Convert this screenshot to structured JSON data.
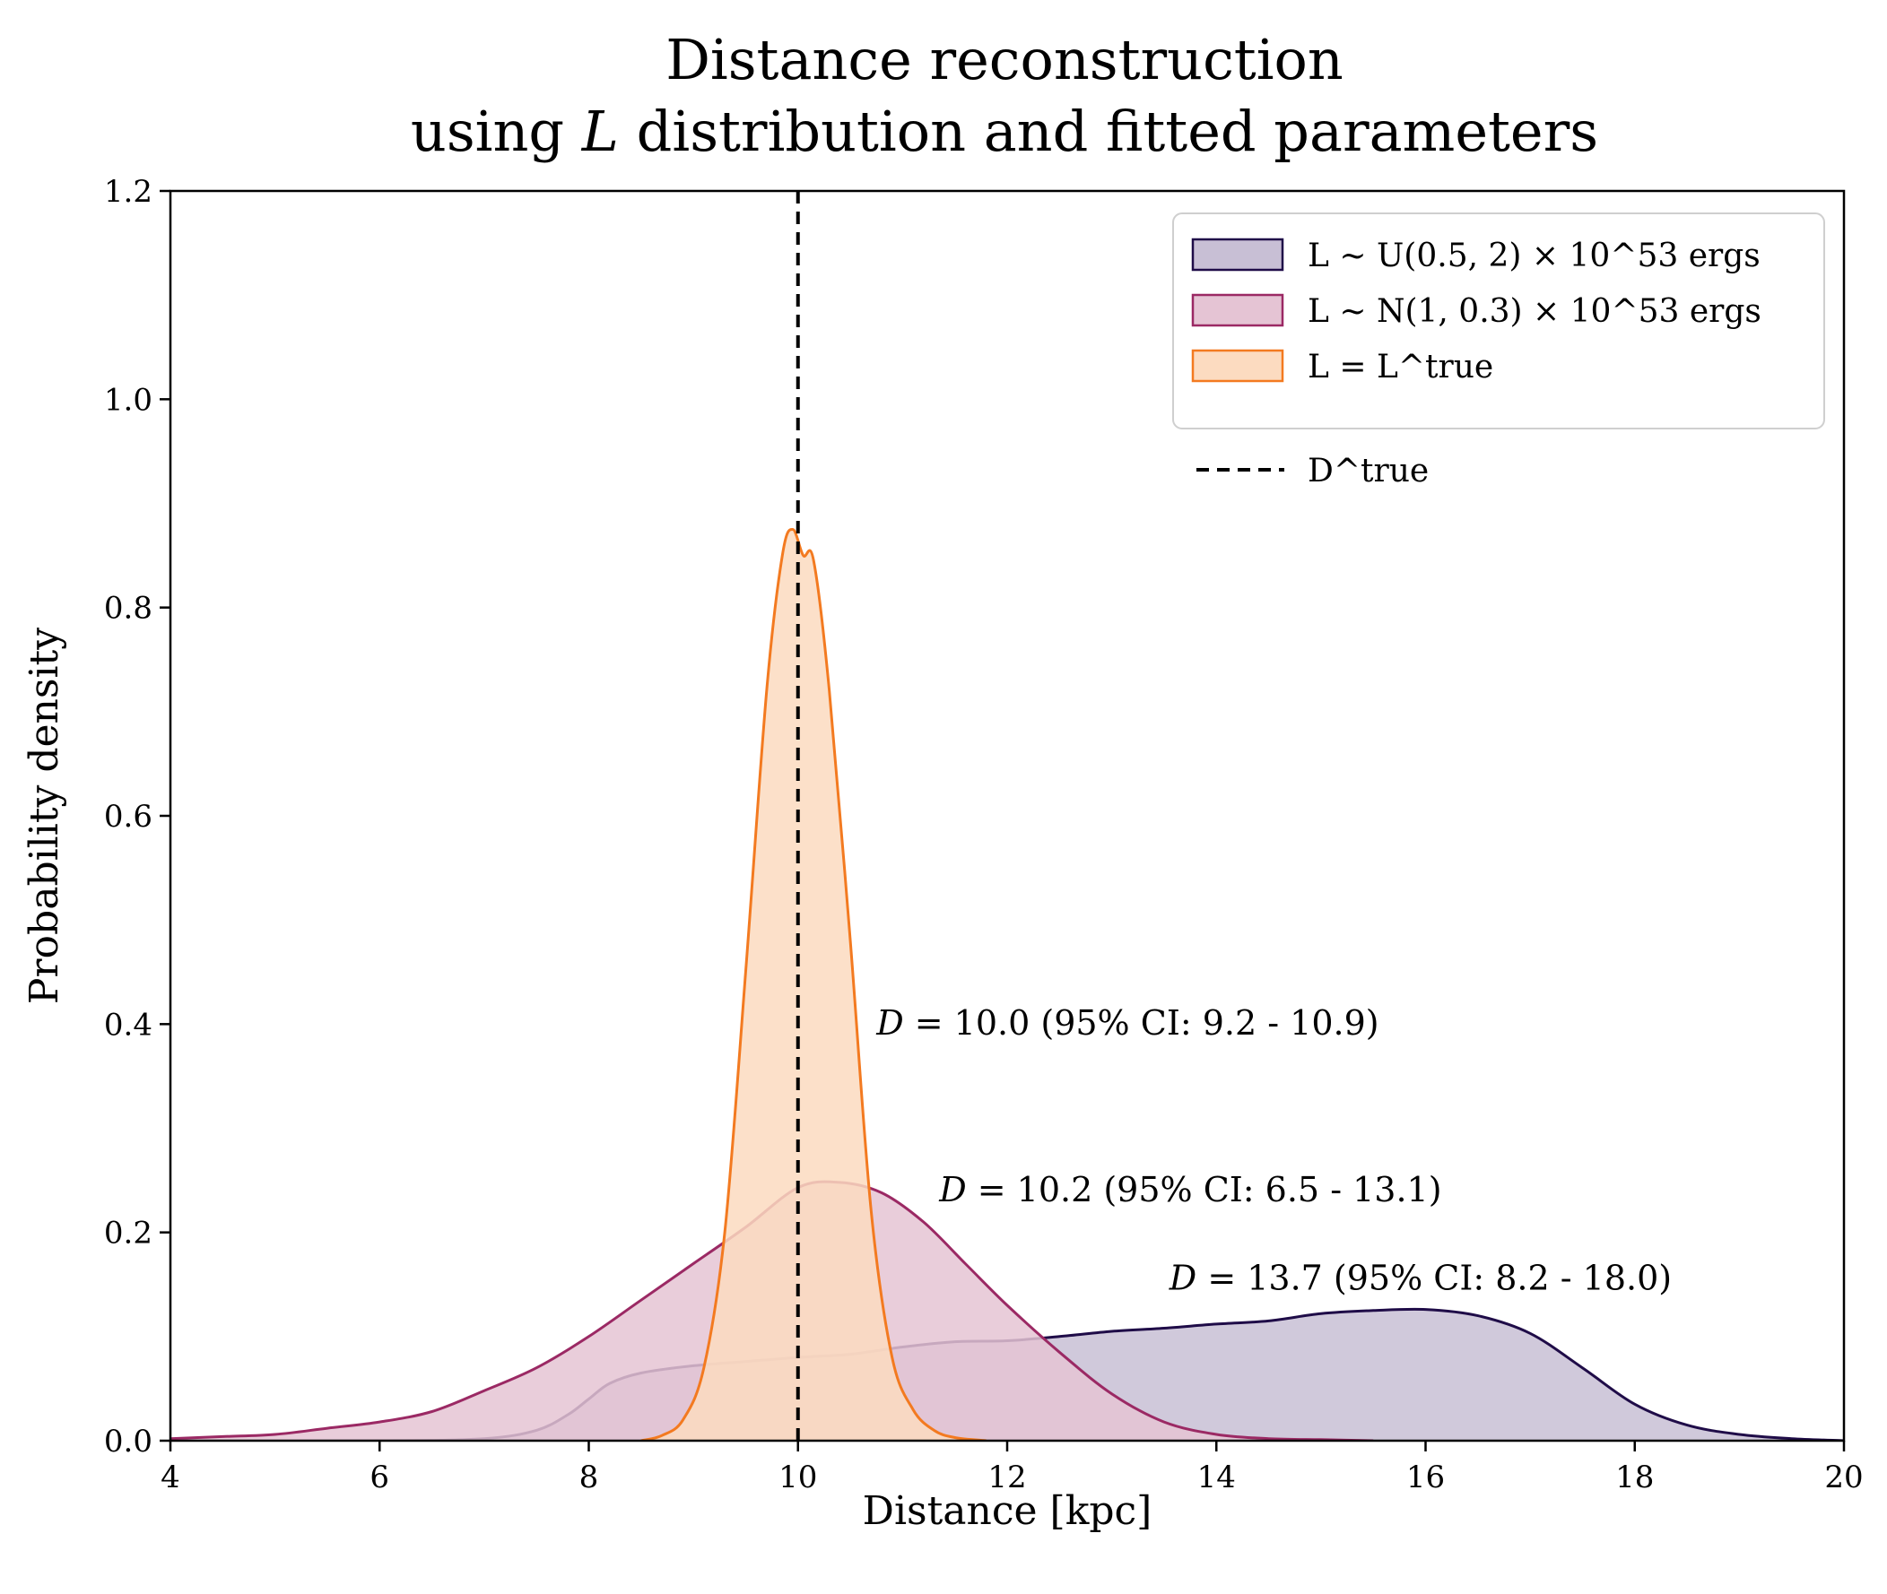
{
  "chart_data": {
    "type": "area",
    "title": [
      "Distance reconstruction",
      "using L distribution and fitted parameters"
    ],
    "xlabel": "Distance [kpc]",
    "ylabel": "Probability density",
    "xlim": [
      4,
      20
    ],
    "ylim": [
      0,
      1.2
    ],
    "xticks": [
      4,
      6,
      8,
      10,
      12,
      14,
      16,
      18,
      20
    ],
    "yticks": [
      0.0,
      0.2,
      0.4,
      0.6,
      0.8,
      1.0,
      1.2
    ],
    "grid": false,
    "legend_position": "top-right",
    "series": [
      {
        "name": "L ~ U(0.5, 2) × 10^53 ergs",
        "color": "#1f0c48",
        "fill": "#c8bfd5",
        "x": [
          4,
          6,
          7,
          7.5,
          7.8,
          8.0,
          8.2,
          8.5,
          9.0,
          9.5,
          10.0,
          10.5,
          11.0,
          11.5,
          12.0,
          12.5,
          13.0,
          13.5,
          14.0,
          14.5,
          15.0,
          15.5,
          16.0,
          16.5,
          17.0,
          17.5,
          18.0,
          18.5,
          19.0,
          19.5,
          20.0
        ],
        "values": [
          0,
          0,
          0.002,
          0.01,
          0.025,
          0.04,
          0.055,
          0.065,
          0.072,
          0.076,
          0.08,
          0.083,
          0.09,
          0.095,
          0.096,
          0.1,
          0.105,
          0.108,
          0.112,
          0.115,
          0.122,
          0.125,
          0.126,
          0.12,
          0.103,
          0.07,
          0.035,
          0.015,
          0.006,
          0.002,
          0
        ]
      },
      {
        "name": "L ~ N(1, 0.3) × 10^53 ergs",
        "color": "#9b2964",
        "fill": "#e5c4d4",
        "x": [
          4,
          4.5,
          5.0,
          5.5,
          6.0,
          6.5,
          7.0,
          7.5,
          8.0,
          8.5,
          9.0,
          9.5,
          10.0,
          10.4,
          10.8,
          11.2,
          11.6,
          12.0,
          12.5,
          13.0,
          13.5,
          14.0,
          14.5,
          15.0,
          15.5
        ],
        "values": [
          0.002,
          0.004,
          0.006,
          0.012,
          0.018,
          0.028,
          0.048,
          0.07,
          0.1,
          0.135,
          0.17,
          0.205,
          0.243,
          0.248,
          0.238,
          0.21,
          0.17,
          0.13,
          0.085,
          0.045,
          0.018,
          0.006,
          0.002,
          0.001,
          0
        ]
      },
      {
        "name": "L = L^true",
        "color": "#f37a20",
        "fill": "#fcdbc0",
        "x": [
          8.5,
          8.7,
          8.9,
          9.1,
          9.3,
          9.5,
          9.7,
          9.85,
          9.95,
          10.05,
          10.15,
          10.3,
          10.5,
          10.7,
          10.9,
          11.1,
          11.3,
          11.5,
          11.8
        ],
        "values": [
          0,
          0.005,
          0.02,
          0.07,
          0.2,
          0.45,
          0.72,
          0.85,
          0.875,
          0.85,
          0.845,
          0.72,
          0.48,
          0.22,
          0.08,
          0.03,
          0.01,
          0.003,
          0
        ]
      }
    ],
    "reference_line": {
      "name": "D^true",
      "x": 10,
      "style": "dashed",
      "color": "#000000"
    },
    "annotations": [
      {
        "text": "D = 10.0 (95% CI: 9.2 - 10.9)",
        "x": 10.75,
        "y": 0.39
      },
      {
        "text": "D = 10.2 (95% CI: 6.5 - 13.1)",
        "x": 11.35,
        "y": 0.23
      },
      {
        "text": "D = 13.7 (95% CI: 8.2 - 18.0)",
        "x": 13.55,
        "y": 0.145
      }
    ]
  }
}
